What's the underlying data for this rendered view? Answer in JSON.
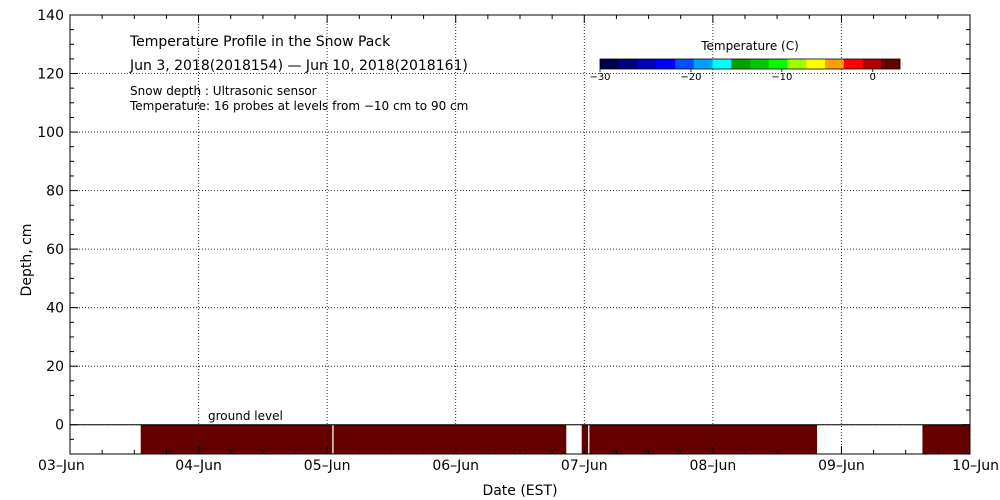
{
  "chart_data": {
    "type": "heatmap",
    "title": "Temperature Profile in the Snow Pack",
    "subtitle": "Jun  3, 2018(2018154) — Jun 10, 2018(2018161)",
    "notes": [
      "Snow depth : Ultrasonic sensor",
      "Temperature: 16 probes at levels from −10 cm to 90 cm"
    ],
    "xlabel": "Date (EST)",
    "ylabel": "Depth, cm",
    "x_tick_labels": [
      "03–Jun",
      "04–Jun",
      "05–Jun",
      "06–Jun",
      "07–Jun",
      "08–Jun",
      "09–Jun",
      "10–Jun"
    ],
    "xlim_days": [
      0,
      7
    ],
    "ylim": [
      -10,
      140
    ],
    "y_ticks": [
      0,
      20,
      40,
      60,
      80,
      100,
      120,
      140
    ],
    "y_tick_labels": [
      "0",
      "20",
      "40",
      "60",
      "80",
      "100",
      "120",
      "140"
    ],
    "grid": true,
    "ground_level": {
      "label": "ground level",
      "depth_cm": 0
    },
    "colorbar": {
      "title": "Temperature (C)",
      "range": [
        -30,
        3
      ],
      "tick_values": [
        -30,
        -20,
        -10,
        0
      ],
      "tick_labels": [
        "−30",
        "−20",
        "−10",
        "0"
      ],
      "colors": [
        "#000050",
        "#000080",
        "#0000b4",
        "#0000ff",
        "#0050ff",
        "#00a0ff",
        "#00ffff",
        "#00a000",
        "#00c800",
        "#00ff00",
        "#a0ff00",
        "#ffff00",
        "#ffa000",
        "#ff0000",
        "#b40000",
        "#640000"
      ]
    },
    "temperature_segments": [
      {
        "start_day": 0.55,
        "end_day": 2.04,
        "temperature_c": 2
      },
      {
        "start_day": 2.05,
        "end_day": 3.86,
        "temperature_c": 2
      },
      {
        "start_day": 3.98,
        "end_day": 4.03,
        "temperature_c": 2
      },
      {
        "start_day": 4.04,
        "end_day": 5.81,
        "temperature_c": 2
      },
      {
        "start_day": 6.63,
        "end_day": 7.0,
        "temperature_c": 2
      }
    ],
    "segment_depth_range_cm": [
      -10,
      0
    ]
  }
}
